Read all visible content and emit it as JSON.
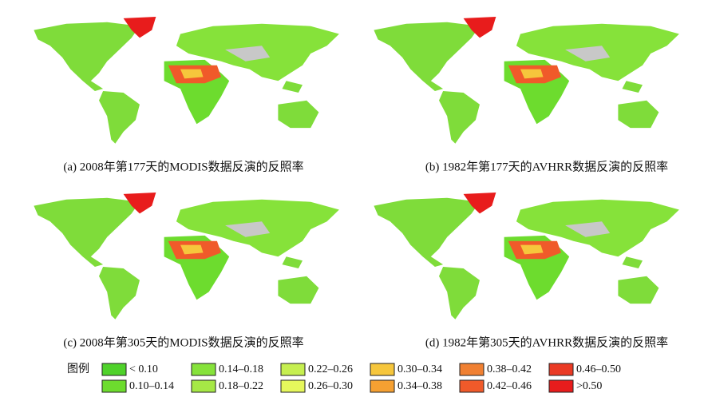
{
  "panels": [
    {
      "caption": "(a) 2008年第177天的MODIS数据反演的反照率"
    },
    {
      "caption": "(b) 1982年第177天的AVHRR数据反演的反照率"
    },
    {
      "caption": "(c) 2008年第305天的MODIS数据反演的反照率"
    },
    {
      "caption": "(d) 1982年第305天的AVHRR数据反演的反照率"
    }
  ],
  "legend": {
    "title": "图例",
    "items": [
      {
        "label": "< 0.10",
        "color": "#4fd22a"
      },
      {
        "label": "0.10–0.14",
        "color": "#6ddc2e"
      },
      {
        "label": "0.14–0.18",
        "color": "#86e23a"
      },
      {
        "label": "0.18–0.22",
        "color": "#a6e846"
      },
      {
        "label": "0.22–0.26",
        "color": "#c6ef50"
      },
      {
        "label": "0.26–0.30",
        "color": "#e6f75c"
      },
      {
        "label": "0.30–0.34",
        "color": "#f6c63c"
      },
      {
        "label": "0.34–0.38",
        "color": "#f5a032"
      },
      {
        "label": "0.38–0.42",
        "color": "#f08032"
      },
      {
        "label": "0.42–0.46",
        "color": "#f05a2a"
      },
      {
        "label": "0.46–0.50",
        "color": "#ea3a24"
      },
      {
        "label": ">0.50",
        "color": "#e81c1c"
      }
    ]
  }
}
